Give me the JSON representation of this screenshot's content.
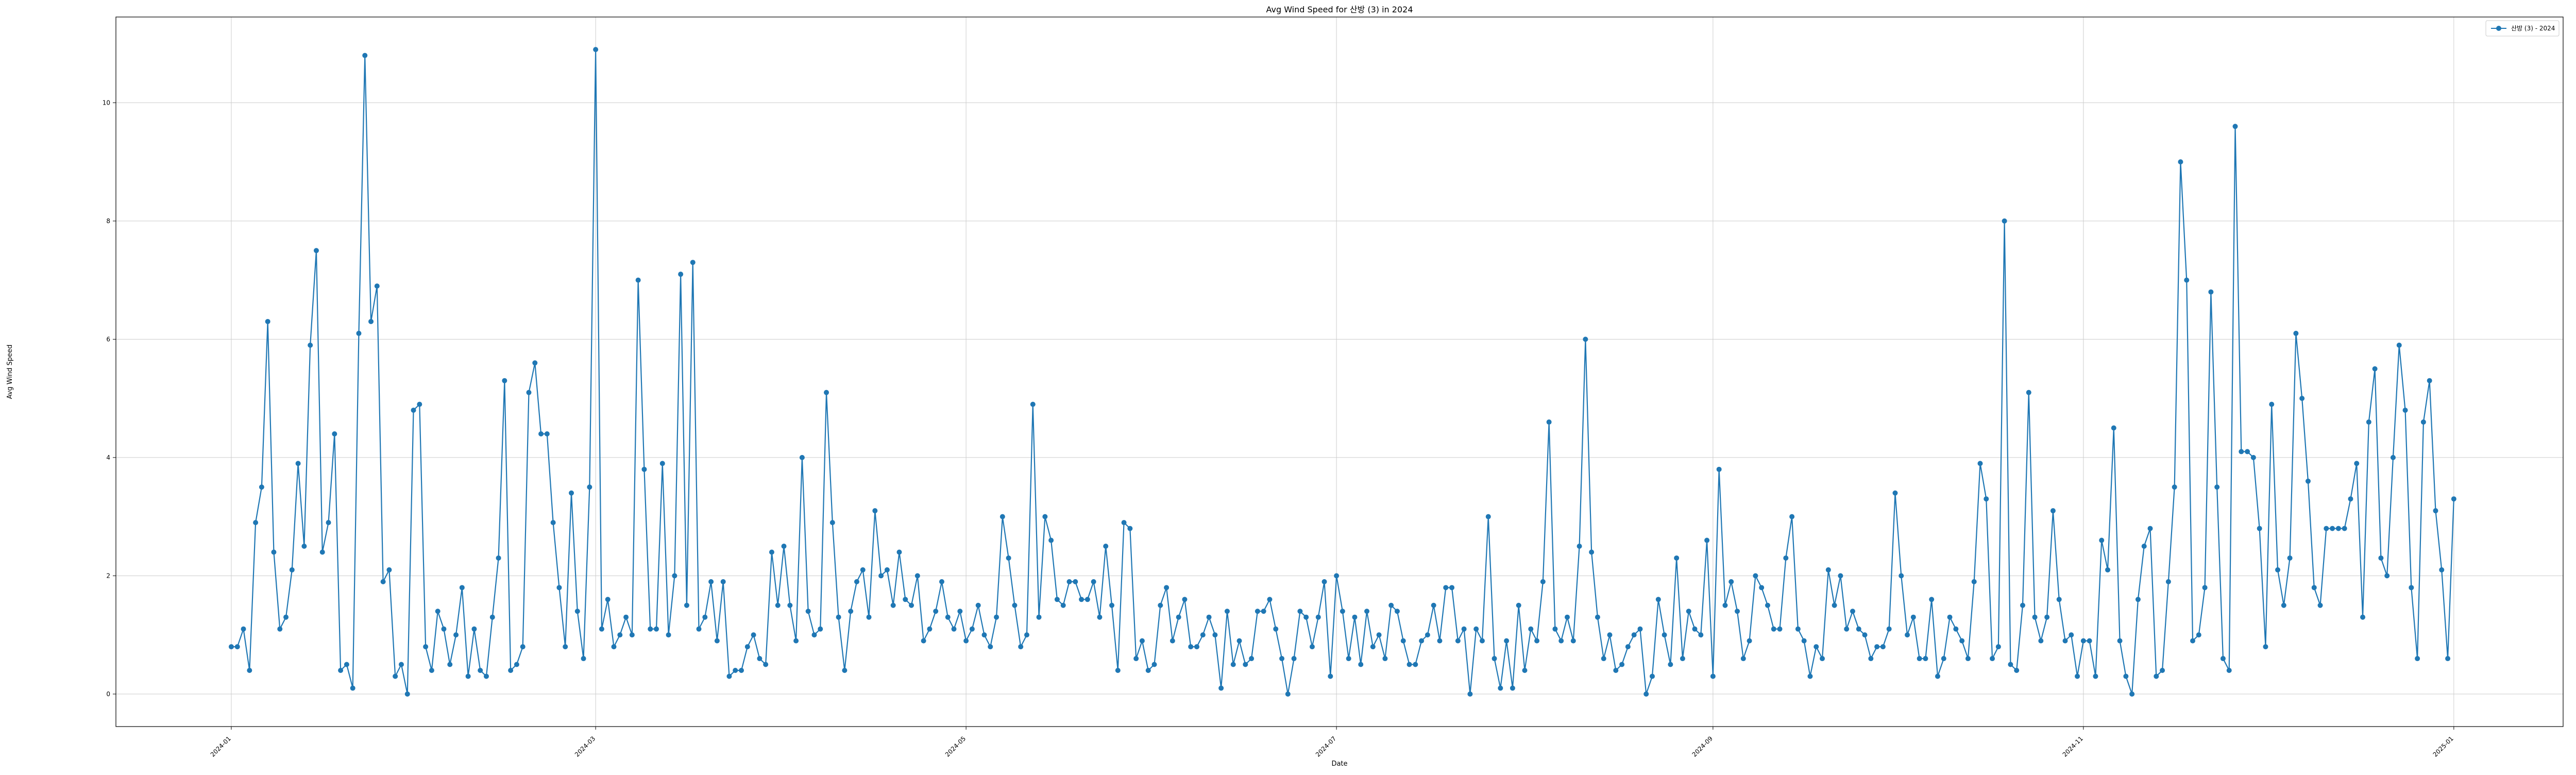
{
  "chart_data": {
    "type": "line",
    "title": "Avg Wind Speed for 산방 (3) in 2024",
    "xlabel": "Date",
    "ylabel": "Avg Wind Speed",
    "legend": {
      "entries": [
        "산방 (3) - 2024"
      ],
      "placement": "top-right"
    },
    "grid": true,
    "ylim": [
      -0.55,
      11.45
    ],
    "xlim": [
      "2023-12-13",
      "2025-01-19"
    ],
    "x_ticks": [
      "2024-01",
      "2024-03",
      "2024-05",
      "2024-07",
      "2024-09",
      "2024-11",
      "2025-01"
    ],
    "y_ticks": [
      0,
      2,
      4,
      6,
      8,
      10
    ],
    "colors": {
      "line": "#1f77b4",
      "grid": "#cccccc"
    },
    "series": [
      {
        "name": "산방 (3) - 2024",
        "start_date": "2024-01-01",
        "values": [
          0.8,
          0.8,
          1.1,
          0.4,
          2.9,
          3.5,
          6.3,
          2.4,
          1.1,
          1.3,
          2.1,
          3.9,
          2.5,
          5.9,
          7.5,
          2.4,
          2.9,
          4.4,
          0.4,
          0.5,
          0.1,
          6.1,
          10.8,
          6.3,
          6.9,
          1.9,
          2.1,
          0.3,
          0.5,
          0.0,
          4.8,
          4.9,
          0.8,
          0.4,
          1.4,
          1.1,
          0.5,
          1.0,
          1.8,
          0.3,
          1.1,
          0.4,
          0.3,
          1.3,
          2.3,
          5.3,
          0.4,
          0.5,
          0.8,
          5.1,
          5.6,
          4.4,
          4.4,
          2.9,
          1.8,
          0.8,
          3.4,
          1.4,
          0.6,
          3.5,
          10.9,
          1.1,
          1.6,
          0.8,
          1.0,
          1.3,
          1.0,
          7.0,
          3.8,
          1.1,
          1.1,
          3.9,
          1.0,
          2.0,
          7.1,
          1.5,
          7.3,
          1.1,
          1.3,
          1.9,
          0.9,
          1.9,
          0.3,
          0.4,
          0.4,
          0.8,
          1.0,
          0.6,
          0.5,
          2.4,
          1.5,
          2.5,
          1.5,
          0.9,
          4.0,
          1.4,
          1.0,
          1.1,
          5.1,
          2.9,
          1.3,
          0.4,
          1.4,
          1.9,
          2.1,
          1.3,
          3.1,
          2.0,
          2.1,
          1.5,
          2.4,
          1.6,
          1.5,
          2.0,
          0.9,
          1.1,
          1.4,
          1.9,
          1.3,
          1.1,
          1.4,
          0.9,
          1.1,
          1.5,
          1.0,
          0.8,
          1.3,
          3.0,
          2.3,
          1.5,
          0.8,
          1.0,
          4.9,
          1.3,
          3.0,
          2.6,
          1.6,
          1.5,
          1.9,
          1.9,
          1.6,
          1.6,
          1.9,
          1.3,
          2.5,
          1.5,
          0.4,
          2.9,
          2.8,
          0.6,
          0.9,
          0.4,
          0.5,
          1.5,
          1.8,
          0.9,
          1.3,
          1.6,
          0.8,
          0.8,
          1.0,
          1.3,
          1.0,
          0.1,
          1.4,
          0.5,
          0.9,
          0.5,
          0.6,
          1.4,
          1.4,
          1.6,
          1.1,
          0.6,
          0.0,
          0.6,
          1.4,
          1.3,
          0.8,
          1.3,
          1.9,
          0.3,
          2.0,
          1.4,
          0.6,
          1.3,
          0.5,
          1.4,
          0.8,
          1.0,
          0.6,
          1.5,
          1.4,
          0.9,
          0.5,
          0.5,
          0.9,
          1.0,
          1.5,
          0.9,
          1.8,
          1.8,
          0.9,
          1.1,
          0.0,
          1.1,
          0.9,
          3.0,
          0.6,
          0.1,
          0.9,
          0.1,
          1.5,
          0.4,
          1.1,
          0.9,
          1.9,
          4.6,
          1.1,
          0.9,
          1.3,
          0.9,
          2.5,
          6.0,
          2.4,
          1.3,
          0.6,
          1.0,
          0.4,
          0.5,
          0.8,
          1.0,
          1.1,
          0.0,
          0.3,
          1.6,
          1.0,
          0.5,
          2.3,
          0.6,
          1.4,
          1.1,
          1.0,
          2.6,
          0.3,
          3.8,
          1.5,
          1.9,
          1.4,
          0.6,
          0.9,
          2.0,
          1.8,
          1.5,
          1.1,
          1.1,
          2.3,
          3.0,
          1.1,
          0.9,
          0.3,
          0.8,
          0.6,
          2.1,
          1.5,
          2.0,
          1.1,
          1.4,
          1.1,
          1.0,
          0.6,
          0.8,
          0.8,
          1.1,
          3.4,
          2.0,
          1.0,
          1.3,
          0.6,
          0.6,
          1.6,
          0.3,
          0.6,
          1.3,
          1.1,
          0.9,
          0.6,
          1.9,
          3.9,
          3.3,
          0.6,
          0.8,
          8.0,
          0.5,
          0.4,
          1.5,
          5.1,
          1.3,
          0.9,
          1.3,
          3.1,
          1.6,
          0.9,
          1.0,
          0.3,
          0.9,
          0.9,
          0.3,
          2.6,
          2.1,
          4.5,
          0.9,
          0.3,
          0.0,
          1.6,
          2.5,
          2.8,
          0.3,
          0.4,
          1.9,
          3.5,
          9.0,
          7.0,
          0.9,
          1.0,
          1.8,
          6.8,
          3.5,
          0.6,
          0.4,
          9.6,
          4.1,
          4.1,
          4.0,
          2.8,
          0.8,
          4.9,
          2.1,
          1.5,
          2.3,
          6.1,
          5.0,
          3.6,
          1.8,
          1.5,
          2.8,
          2.8,
          2.8,
          2.8,
          3.3,
          3.9,
          1.3,
          4.6,
          5.5,
          2.3,
          2.0,
          4.0,
          5.9,
          4.8,
          1.8,
          0.6,
          4.6,
          5.3,
          3.1,
          2.1,
          0.6,
          3.3
        ]
      }
    ]
  }
}
